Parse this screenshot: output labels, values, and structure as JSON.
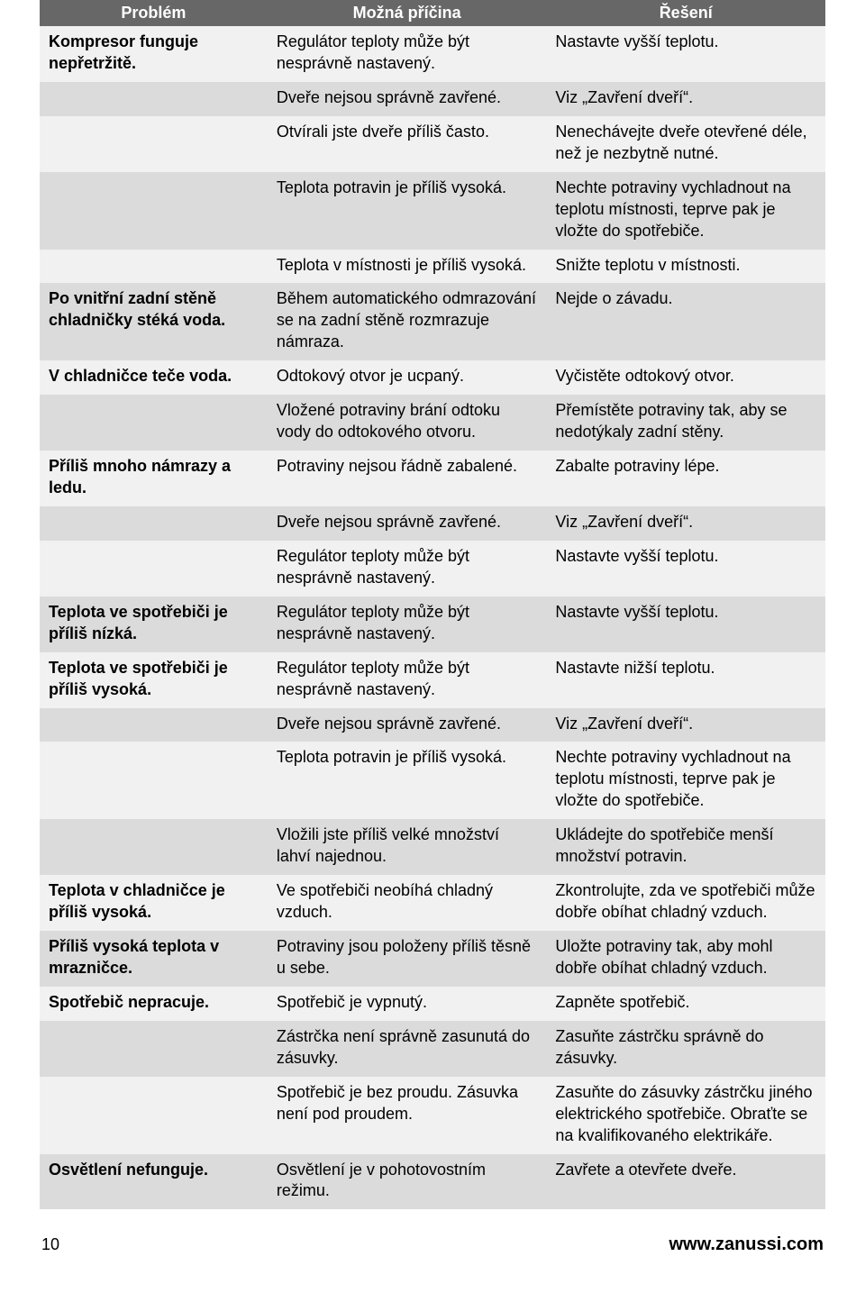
{
  "header": {
    "col1": "Problém",
    "col2": "Možná příčina",
    "col3": "Řešení"
  },
  "rows": [
    {
      "shade": "light",
      "p": "Kompresor funguje nepřetržitě.",
      "c": "Regulátor teploty může být nesprávně nastavený.",
      "s": "Nastavte vyšší teplotu."
    },
    {
      "shade": "dark",
      "p": "",
      "c": "Dveře nejsou správně zavřené.",
      "s": "Viz „Zavření dveří“."
    },
    {
      "shade": "light",
      "p": "",
      "c": "Otvírali jste dveře příliš často.",
      "s": "Nenechávejte dveře otevřené déle, než je nezbytně nutné."
    },
    {
      "shade": "dark",
      "p": "",
      "c": "Teplota potravin je příliš vysoká.",
      "s": "Nechte potraviny vychladnout na teplotu místnosti, teprve pak je vložte do spotřebiče."
    },
    {
      "shade": "light",
      "p": "",
      "c": "Teplota v místnosti je příliš vysoká.",
      "s": "Snižte teplotu v místnosti."
    },
    {
      "shade": "dark",
      "p": "Po vnitřní zadní stěně chladničky stéká voda.",
      "c": "Během automatického odmrazování se na zadní stěně rozmrazuje námraza.",
      "s": "Nejde o závadu."
    },
    {
      "shade": "light",
      "p": "V chladničce teče voda.",
      "c": "Odtokový otvor je ucpaný.",
      "s": "Vyčistěte odtokový otvor."
    },
    {
      "shade": "dark",
      "p": "",
      "c": "Vložené potraviny brání odtoku vody do odtokového otvoru.",
      "s": "Přemístěte potraviny tak, aby se nedotýkaly zadní stěny."
    },
    {
      "shade": "light",
      "p": "Příliš mnoho námrazy a ledu.",
      "c": "Potraviny nejsou řádně zabalené.",
      "s": "Zabalte potraviny lépe."
    },
    {
      "shade": "dark",
      "p": "",
      "c": "Dveře nejsou správně zavřené.",
      "s": "Viz „Zavření dveří“."
    },
    {
      "shade": "light",
      "p": "",
      "c": "Regulátor teploty může být nesprávně nastavený.",
      "s": "Nastavte vyšší teplotu."
    },
    {
      "shade": "dark",
      "p": "Teplota ve spotřebiči je příliš nízká.",
      "c": "Regulátor teploty může být nesprávně nastavený.",
      "s": "Nastavte vyšší teplotu."
    },
    {
      "shade": "light",
      "p": "Teplota ve spotřebiči je příliš vysoká.",
      "c": "Regulátor teploty může být nesprávně nastavený.",
      "s": "Nastavte nižší teplotu."
    },
    {
      "shade": "dark",
      "p": "",
      "c": "Dveře nejsou správně zavřené.",
      "s": "Viz „Zavření dveří“."
    },
    {
      "shade": "light",
      "p": "",
      "c": "Teplota potravin je příliš vysoká.",
      "s": "Nechte potraviny vychladnout na teplotu místnosti, teprve pak je vložte do spotřebiče."
    },
    {
      "shade": "dark",
      "p": "",
      "c": "Vložili jste příliš velké množství lahví najednou.",
      "s": "Ukládejte do spotřebiče menší množství potravin."
    },
    {
      "shade": "light",
      "p": "Teplota v chladničce je příliš vysoká.",
      "c": "Ve spotřebiči neobíhá chladný vzduch.",
      "s": "Zkontrolujte, zda ve spotřebiči může dobře obíhat chladný vzduch."
    },
    {
      "shade": "dark",
      "p": "Příliš vysoká teplota v mrazničce.",
      "c": "Potraviny jsou položeny příliš těsně u sebe.",
      "s": "Uložte potraviny tak, aby mohl dobře obíhat chladný vzduch."
    },
    {
      "shade": "light",
      "p": "Spotřebič nepracuje.",
      "c": "Spotřebič je vypnutý.",
      "s": "Zapněte spotřebič."
    },
    {
      "shade": "dark",
      "p": "",
      "c": "Zástrčka není správně zasunutá do zásuvky.",
      "s": "Zasuňte zástrčku správně do zásuvky."
    },
    {
      "shade": "light",
      "p": "",
      "c": "Spotřebič je bez proudu. Zásuvka není pod proudem.",
      "s": "Zasuňte do zásuvky zástrčku jiného elektrického spotřebiče. Obraťte se na kvalifikovaného elektrikáře."
    },
    {
      "shade": "dark",
      "p": "Osvětlení nefunguje.",
      "c": "Osvětlení je v pohotovostním režimu.",
      "s": "Zavřete a otevřete dveře."
    }
  ],
  "footer": {
    "page": "10",
    "site": "www.zanussi.com"
  }
}
